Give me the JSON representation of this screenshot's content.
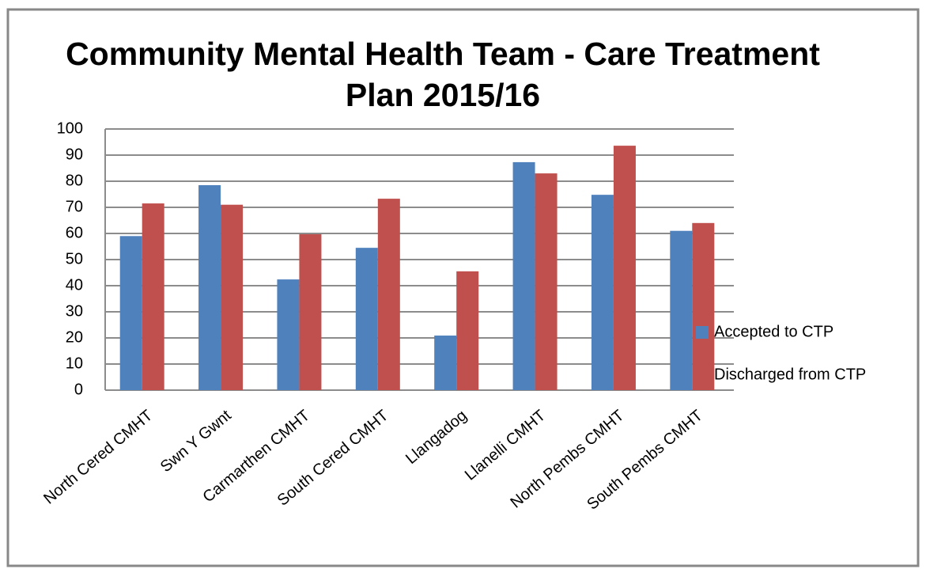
{
  "chart_data": {
    "type": "bar",
    "title": "Community Mental Health Team - Care Treatment Plan 2015/16",
    "categories": [
      "North Cered CMHT",
      "Swn Y Gwnt",
      "Carmarthen CMHT",
      "South Cered CMHT",
      "Llangadog",
      "Llanelli CMHT",
      "North Pembs CMHT",
      "South Pembs CMHT"
    ],
    "series": [
      {
        "name": "Accepted to CTP",
        "color": "#4f81bd",
        "values": [
          59,
          78.5,
          42.4,
          54.5,
          20.9,
          87.3,
          74.8,
          61
        ]
      },
      {
        "name": "Discharged from CTP",
        "color": "#c0504d",
        "values": [
          71.5,
          71,
          59.7,
          73.3,
          45.5,
          83,
          93.6,
          64
        ]
      }
    ],
    "ylim": [
      0,
      100
    ],
    "yticks": [
      0,
      10,
      20,
      30,
      40,
      50,
      60,
      70,
      80,
      90,
      100
    ],
    "grid": true,
    "legend": "right"
  }
}
